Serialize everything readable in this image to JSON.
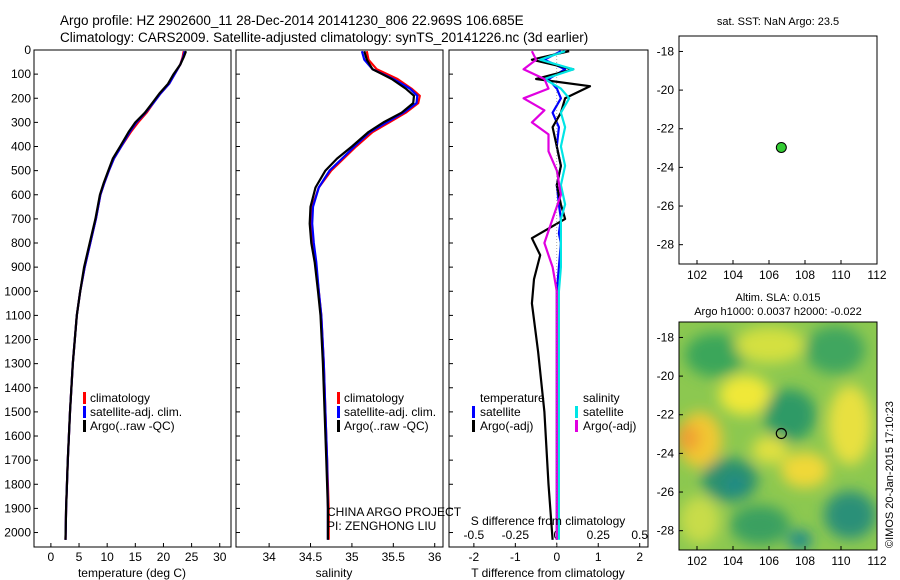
{
  "header": {
    "line1": "Argo profile: HZ 2902600_11 28-Dec-2014 20141230_806 22.969S 106.685E",
    "line2": "Climatology: CARS2009. Satellite-adjusted climatology: synTS_20141226.nc (3d earlier)"
  },
  "credit": {
    "project": "CHINA ARGO PROJECT",
    "pi": "PI: ZENGHONG LIU",
    "stamp": "©IMOS 20-Jan-2015 17:10:23"
  },
  "colors": {
    "climatology": "#ff0000",
    "satellite": "#0000ff",
    "argo": "#000000",
    "sat_salinity": "#00e5e5",
    "argo_salinity": "#e000e0"
  },
  "depth_ticks": [
    0,
    100,
    200,
    300,
    400,
    500,
    600,
    700,
    800,
    900,
    1000,
    1100,
    1200,
    1300,
    1400,
    1500,
    1600,
    1700,
    1800,
    1900,
    2000
  ],
  "chart_data": [
    {
      "type": "line",
      "xlabel": "temperature (deg C)",
      "xticks": [
        "0",
        "5",
        "10",
        "15",
        "20",
        "25",
        "30"
      ],
      "xlim": [
        -3,
        32
      ],
      "ylim": [
        2060,
        0
      ],
      "legend": [
        "climatology",
        "satellite-adj. clim.",
        "Argo(..raw -QC)"
      ],
      "series": [
        {
          "name": "climatology",
          "color": "#ff0000",
          "x": [
            23.6,
            23.4,
            23.0,
            22.0,
            21.0,
            19.5,
            18.2,
            17.0,
            15.5,
            14.2,
            12.5,
            11.2,
            10.3,
            9.5,
            8.8,
            8.0,
            7.0,
            6.0,
            5.2,
            4.6,
            3.9,
            3.4,
            3.0,
            2.7,
            2.6
          ],
          "y": [
            5,
            30,
            60,
            100,
            140,
            180,
            220,
            260,
            300,
            340,
            400,
            450,
            500,
            550,
            600,
            700,
            800,
            900,
            1000,
            1100,
            1300,
            1500,
            1700,
            1900,
            2030
          ]
        },
        {
          "name": "satellite-adj. clim.",
          "color": "#0000ff",
          "x": [
            23.8,
            23.5,
            23.0,
            22.0,
            21.0,
            19.5,
            18.2,
            16.8,
            15.2,
            14.0,
            12.5,
            11.2,
            10.3,
            9.5,
            8.8,
            8.0,
            7.0,
            6.0,
            5.2,
            4.6,
            3.9,
            3.4,
            3.0,
            2.7,
            2.6
          ],
          "y": [
            5,
            30,
            60,
            100,
            140,
            180,
            220,
            260,
            300,
            340,
            400,
            450,
            500,
            550,
            600,
            700,
            800,
            900,
            1000,
            1100,
            1300,
            1500,
            1700,
            1900,
            2030
          ]
        },
        {
          "name": "Argo(..raw -QC)",
          "color": "#000000",
          "x": [
            24.0,
            23.6,
            23.0,
            21.8,
            20.8,
            19.3,
            18.0,
            16.7,
            15.0,
            13.8,
            12.3,
            11.0,
            10.2,
            9.4,
            8.7,
            7.9,
            6.9,
            5.9,
            5.2,
            4.6,
            3.9,
            3.4,
            3.0,
            2.7,
            2.6
          ],
          "y": [
            5,
            30,
            60,
            100,
            140,
            180,
            220,
            260,
            300,
            340,
            400,
            450,
            500,
            550,
            600,
            700,
            800,
            900,
            1000,
            1100,
            1300,
            1500,
            1700,
            1900,
            2030
          ]
        }
      ]
    },
    {
      "type": "line",
      "xlabel": "salinity",
      "xticks": [
        "34",
        "34.5",
        "35",
        "35.5",
        "36"
      ],
      "xlim": [
        33.6,
        36.1
      ],
      "ylim": [
        2060,
        0
      ],
      "legend": [
        "climatology",
        "satellite-adj. clim.",
        "Argo(..raw -QC)"
      ],
      "series": [
        {
          "name": "climatology",
          "color": "#ff0000",
          "x": [
            35.18,
            35.2,
            35.3,
            35.55,
            35.72,
            35.82,
            35.8,
            35.65,
            35.45,
            35.25,
            35.05,
            34.9,
            34.75,
            34.6,
            34.52,
            34.5,
            34.52,
            34.56,
            34.6,
            34.63,
            34.66,
            34.68,
            34.7,
            34.72,
            34.72
          ],
          "y": [
            5,
            40,
            80,
            120,
            160,
            190,
            220,
            260,
            300,
            340,
            400,
            450,
            500,
            570,
            650,
            720,
            800,
            880,
            1000,
            1100,
            1300,
            1500,
            1700,
            1900,
            2030
          ]
        },
        {
          "name": "satellite-adj. clim.",
          "color": "#0000ff",
          "x": [
            35.12,
            35.15,
            35.25,
            35.5,
            35.7,
            35.79,
            35.78,
            35.62,
            35.42,
            35.22,
            35.03,
            34.88,
            34.73,
            34.6,
            34.53,
            34.52,
            34.54,
            34.57,
            34.6,
            34.63,
            34.66,
            34.68,
            34.7,
            34.71,
            34.71
          ],
          "y": [
            5,
            40,
            80,
            120,
            160,
            190,
            220,
            260,
            300,
            340,
            400,
            450,
            500,
            570,
            650,
            720,
            800,
            880,
            1000,
            1100,
            1300,
            1500,
            1700,
            1900,
            2030
          ]
        },
        {
          "name": "Argo(..raw -QC)",
          "color": "#000000",
          "x": [
            35.15,
            35.18,
            35.25,
            35.48,
            35.65,
            35.75,
            35.74,
            35.6,
            35.38,
            35.2,
            35.0,
            34.82,
            34.68,
            34.56,
            34.5,
            34.49,
            34.51,
            34.55,
            34.59,
            34.62,
            34.65,
            34.67,
            34.69,
            34.71,
            34.71
          ],
          "y": [
            5,
            40,
            80,
            120,
            160,
            190,
            220,
            260,
            300,
            340,
            400,
            450,
            500,
            570,
            650,
            720,
            800,
            880,
            1000,
            1100,
            1300,
            1500,
            1700,
            1900,
            2030
          ]
        }
      ]
    },
    {
      "type": "line",
      "xlabel": "T difference from climatology",
      "xlabel_top": "S difference from climatology",
      "xticks": [
        "-2",
        "-1",
        "0",
        "1",
        "2"
      ],
      "xticks_top": [
        "-0.5",
        "-0.25",
        "0",
        "0.25",
        "0.5"
      ],
      "xlim": [
        -2.6,
        2.2
      ],
      "ylim": [
        2060,
        0
      ],
      "legend_title_left": "temperature",
      "legend_title_right": "salinity",
      "legend": [
        "satellite",
        "Argo(-adj)",
        "satellite",
        "Argo(-adj)"
      ],
      "series": [
        {
          "name": "satellite",
          "color": "#0000ff",
          "x": [
            0.1,
            -0.3,
            0.2,
            -0.2,
            0.0,
            0.1,
            -0.1,
            0.05,
            0.0,
            0.1,
            0.0,
            0.05,
            0.1,
            0.05,
            0.1,
            0.05,
            0.0,
            0.0,
            0.0,
            0.0,
            0.0
          ],
          "y": [
            5,
            40,
            80,
            120,
            160,
            200,
            260,
            320,
            400,
            480,
            560,
            640,
            700,
            760,
            800,
            900,
            1000,
            1200,
            1500,
            1800,
            2030
          ]
        },
        {
          "name": "Argo(-adj)",
          "color": "#000000",
          "x": [
            0.3,
            -0.6,
            0.4,
            -0.5,
            0.8,
            0.2,
            0.1,
            -0.1,
            0.0,
            0.1,
            0.0,
            0.1,
            0.2,
            -0.6,
            -0.4,
            -0.55,
            -0.6,
            -0.45,
            -0.3,
            -0.2,
            -0.1
          ],
          "y": [
            5,
            40,
            80,
            120,
            150,
            200,
            260,
            320,
            400,
            480,
            560,
            640,
            700,
            780,
            850,
            950,
            1050,
            1250,
            1500,
            1800,
            2030
          ]
        },
        {
          "name": "satellite",
          "color": "#00e5e5",
          "x": [
            0.2,
            -0.4,
            0.4,
            -0.3,
            0.1,
            0.3,
            0.1,
            0.2,
            0.1,
            0.2,
            0.1,
            0.2,
            0.1,
            0.1,
            0.1,
            0.1,
            0.05,
            0.05,
            0.05,
            0.05,
            0.05
          ],
          "y": [
            5,
            40,
            80,
            120,
            160,
            200,
            260,
            320,
            400,
            480,
            560,
            640,
            700,
            760,
            800,
            900,
            1000,
            1200,
            1500,
            1800,
            2030
          ]
        },
        {
          "name": "Argo(-adj)",
          "color": "#e000e0",
          "x": [
            -0.6,
            -0.5,
            -0.8,
            -0.3,
            -0.2,
            -0.8,
            -0.3,
            -0.6,
            -0.2,
            -0.2,
            0.0,
            0.1,
            -0.1,
            -0.3,
            -0.2,
            -0.1,
            0.0,
            0.0,
            0.0,
            0.0,
            0.0
          ],
          "y": [
            5,
            40,
            80,
            120,
            160,
            200,
            250,
            300,
            350,
            420,
            500,
            600,
            700,
            800,
            850,
            900,
            1000,
            1200,
            1500,
            1800,
            2030
          ]
        }
      ]
    },
    {
      "type": "scatter",
      "title": "sat. SST: NaN Argo: 23.5",
      "xticks": [
        "102",
        "104",
        "106",
        "108",
        "110",
        "112"
      ],
      "yticks": [
        "-18",
        "-20",
        "-22",
        "-24",
        "-26",
        "-28"
      ],
      "xlim": [
        101,
        112
      ],
      "ylim": [
        -29,
        -17.2
      ],
      "points": [
        {
          "x": 106.685,
          "y": -22.969,
          "color": "#33cc33"
        }
      ]
    },
    {
      "type": "heatmap",
      "title_line1": "Altim. SLA: 0.015",
      "title_line2": "Argo h1000: 0.0037 h2000: -0.022",
      "xticks": [
        "102",
        "104",
        "106",
        "108",
        "110",
        "112"
      ],
      "yticks": [
        "-18",
        "-20",
        "-22",
        "-24",
        "-26",
        "-28"
      ],
      "xlim": [
        101,
        112
      ],
      "ylim": [
        -29,
        -17.2
      ],
      "marker": {
        "x": 106.685,
        "y": -22.969
      }
    }
  ]
}
